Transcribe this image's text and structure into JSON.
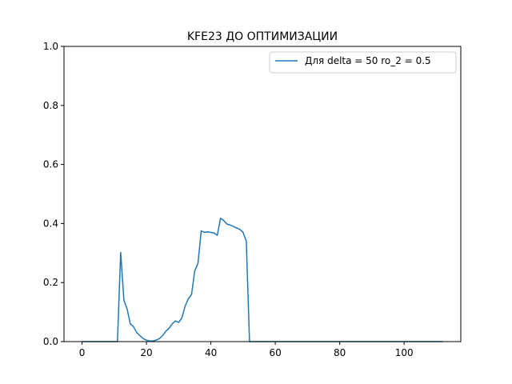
{
  "chart_data": {
    "type": "line",
    "title": "KFE23 ДО ОПТИМИЗАЦИИ",
    "xlabel": "",
    "ylabel": "",
    "xlim": [
      -5.6,
      117.6
    ],
    "ylim": [
      0,
      1.0
    ],
    "xticks": [
      "0",
      "20",
      "40",
      "60",
      "80",
      "100"
    ],
    "yticks": [
      "0.0",
      "0.2",
      "0.4",
      "0.6",
      "0.8",
      "1.0"
    ],
    "grid": false,
    "legend_position": "top-right",
    "series": [
      {
        "name": "Для delta = 50 ro_2 = 0.5",
        "color": "#1f77b4",
        "x": [
          0,
          1,
          2,
          3,
          4,
          5,
          6,
          7,
          8,
          9,
          10,
          11,
          12,
          13,
          14,
          15,
          16,
          17,
          18,
          19,
          20,
          21,
          22,
          23,
          24,
          25,
          26,
          27,
          28,
          29,
          30,
          31,
          32,
          33,
          34,
          35,
          36,
          37,
          38,
          39,
          40,
          41,
          42,
          43,
          44,
          45,
          46,
          47,
          48,
          49,
          50,
          51,
          52,
          53,
          54,
          55,
          56,
          57,
          58,
          59,
          60,
          61,
          62,
          63,
          64,
          65,
          66,
          67,
          68,
          69,
          70,
          71,
          72,
          73,
          74,
          75,
          76,
          77,
          78,
          79,
          80,
          81,
          82,
          83,
          84,
          85,
          86,
          87,
          88,
          89,
          90,
          91,
          92,
          93,
          94,
          95,
          96,
          97,
          98,
          99,
          100,
          101,
          102,
          103,
          104,
          105,
          106,
          107,
          108,
          109,
          110,
          111,
          112
        ],
        "y": [
          0,
          0,
          0,
          0,
          0,
          0,
          0,
          0,
          0,
          0,
          0,
          0,
          0.302,
          0.14,
          0.11,
          0.06,
          0.05,
          0.03,
          0.02,
          0.01,
          0.005,
          0.002,
          0.002,
          0.005,
          0.01,
          0.02,
          0.035,
          0.045,
          0.06,
          0.07,
          0.065,
          0.08,
          0.12,
          0.145,
          0.16,
          0.24,
          0.265,
          0.375,
          0.37,
          0.372,
          0.37,
          0.368,
          0.36,
          0.418,
          0.41,
          0.398,
          0.395,
          0.39,
          0.385,
          0.38,
          0.37,
          0.34,
          0,
          0,
          0,
          0,
          0,
          0,
          0,
          0,
          0,
          0,
          0,
          0,
          0,
          0,
          0,
          0,
          0,
          0,
          0,
          0,
          0,
          0,
          0,
          0,
          0,
          0,
          0,
          0,
          0,
          0,
          0,
          0,
          0,
          0,
          0,
          0,
          0,
          0,
          0,
          0,
          0,
          0,
          0,
          0,
          0,
          0,
          0,
          0,
          0,
          0,
          0,
          0,
          0,
          0,
          0,
          0,
          0,
          0,
          0,
          0,
          0
        ]
      }
    ]
  }
}
